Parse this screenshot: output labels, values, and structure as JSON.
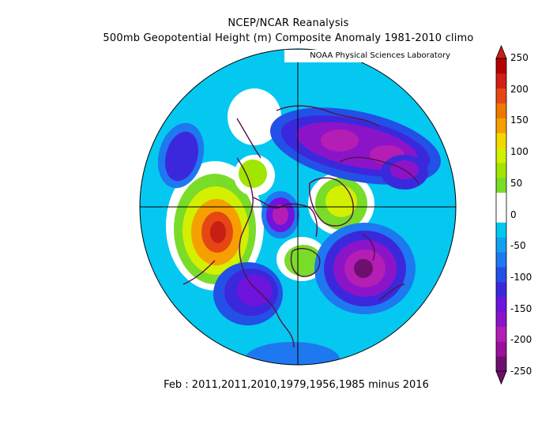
{
  "header": {
    "title": "NCEP/NCAR Reanalysis",
    "subtitle": "500mb Geopotential Height (m) Composite Anomaly 1981-2010 climo",
    "credit": "NOAA Physical Sciences Laboratory"
  },
  "footer": {
    "text": "Feb : 2011,2011,2010,1979,1956,1985 minus 2016"
  },
  "colorbar": {
    "labels": [
      "250",
      "200",
      "150",
      "100",
      "50",
      "0",
      "-50",
      "-100",
      "-150",
      "-200",
      "-250"
    ],
    "colors": [
      "#6e0f6e",
      "#9b0f9b",
      "#b41eb4",
      "#8c14c8",
      "#6e14dc",
      "#3c28dc",
      "#2350e6",
      "#1e78f0",
      "#14a0f0",
      "#00c8f0",
      "#ffffff",
      "#ffffff",
      "#78dc28",
      "#a0e600",
      "#d2f000",
      "#f5d700",
      "#f5a000",
      "#f07800",
      "#e64614",
      "#d21e14",
      "#b40000"
    ]
  },
  "map": {
    "projection": "north-polar-stereographic",
    "features": {
      "positive_anomalies": [
        "north-pacific-ridge",
        "arctic-ridge",
        "hudson-ridge"
      ],
      "negative_anomalies": [
        "eurasian-trough",
        "north-atlantic-trough",
        "west-pacific-trough",
        "north-american-trough",
        "arctic-trough"
      ]
    }
  }
}
